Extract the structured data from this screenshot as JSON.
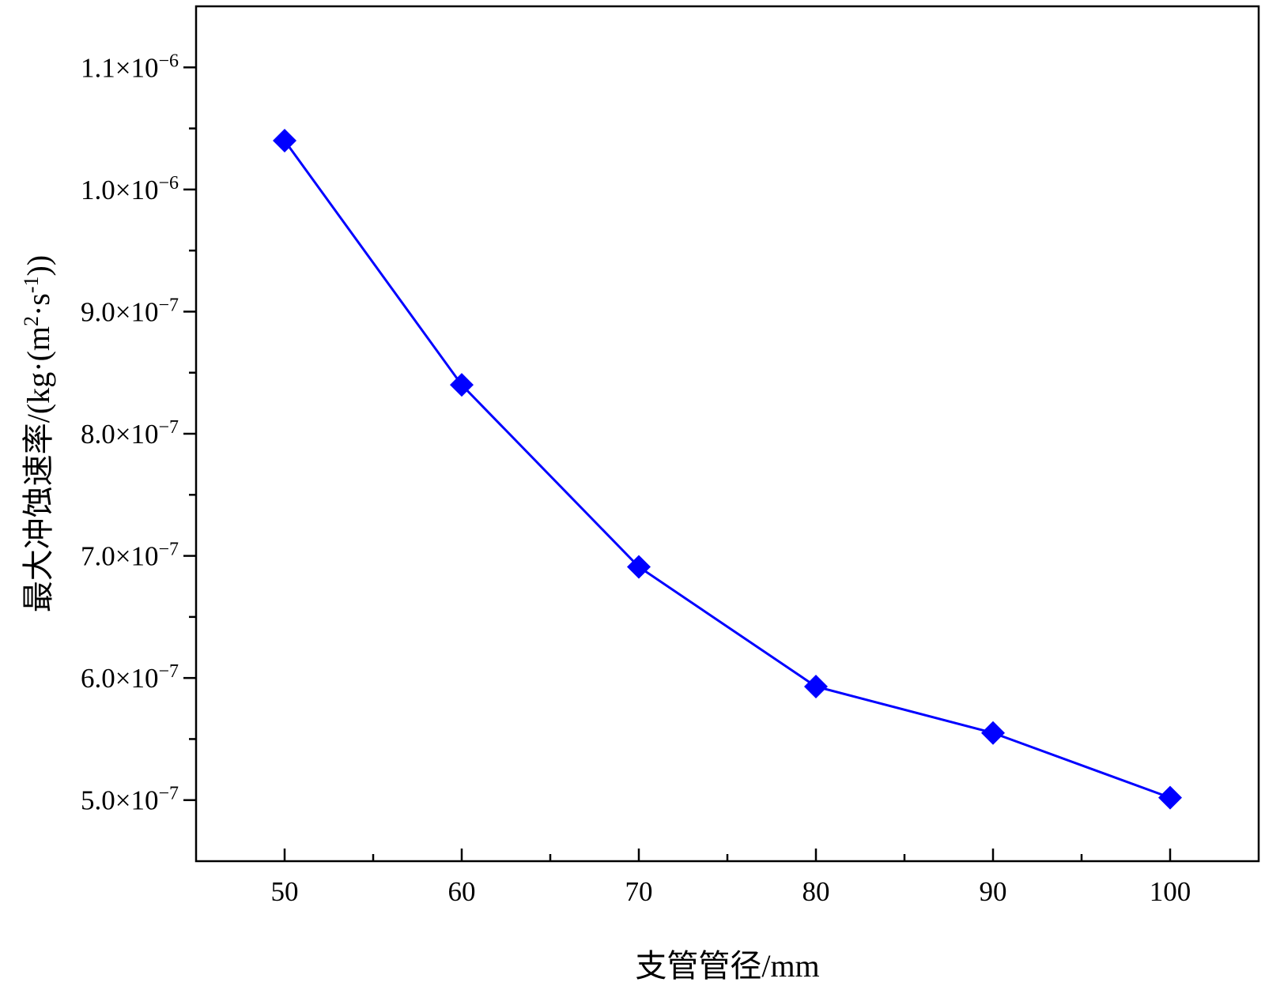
{
  "chart_data": {
    "type": "line",
    "xlabel": "支管管径/mm",
    "ylabel": "最大冲蚀速率/(kg·(m2·s-1))",
    "ylabel_parts": {
      "main": "最大冲蚀速率/(kg·(m",
      "sup1": "2",
      "mid": "·s",
      "sup2": "-1",
      "end": "))"
    },
    "xlim": [
      45,
      105
    ],
    "ylim": [
      4.5e-07,
      1.15e-06
    ],
    "x_ticks": [
      50,
      60,
      70,
      80,
      90,
      100
    ],
    "x_tick_labels": [
      "50",
      "60",
      "70",
      "80",
      "90",
      "100"
    ],
    "y_ticks": [
      5e-07,
      6e-07,
      7e-07,
      8e-07,
      9e-07,
      1e-06,
      1.1e-06
    ],
    "y_tick_labels": [
      {
        "mantissa": "5.0",
        "exp": "−7"
      },
      {
        "mantissa": "6.0",
        "exp": "−7"
      },
      {
        "mantissa": "7.0",
        "exp": "−7"
      },
      {
        "mantissa": "8.0",
        "exp": "−7"
      },
      {
        "mantissa": "9.0",
        "exp": "−7"
      },
      {
        "mantissa": "1.0",
        "exp": "−6"
      },
      {
        "mantissa": "1.1",
        "exp": "−6"
      }
    ],
    "grid": false,
    "series": [
      {
        "x": [
          50,
          60,
          70,
          80,
          90,
          100
        ],
        "y": [
          1.04e-06,
          8.4e-07,
          6.91e-07,
          5.93e-07,
          5.55e-07,
          5.02e-07
        ],
        "color": "#0000ff",
        "marker": "diamond"
      }
    ]
  }
}
